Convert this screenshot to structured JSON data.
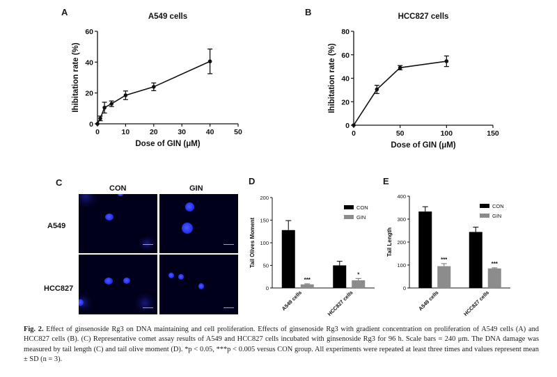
{
  "panels": {
    "A": {
      "label": "A",
      "chart_data": {
        "type": "line",
        "title": "A549 cells",
        "xlabel": "Dose of GIN (μM)",
        "ylabel": "Ihibitation rate (%)",
        "xlim": [
          0,
          50
        ],
        "ylim": [
          0,
          60
        ],
        "xticks": [
          0,
          10,
          20,
          30,
          40,
          50
        ],
        "yticks": [
          0,
          20,
          40,
          60
        ],
        "series": [
          {
            "name": "A549",
            "x": [
              0,
              1,
              2.5,
              5,
              10,
              20,
              40
            ],
            "y": [
              0,
              3.5,
              10.5,
              13,
              18.5,
              24,
              40.5
            ],
            "err": [
              0,
              1.5,
              3.5,
              1.8,
              2.8,
              2.5,
              8
            ]
          }
        ]
      }
    },
    "B": {
      "label": "B",
      "chart_data": {
        "type": "line",
        "title": "HCC827 cells",
        "xlabel": "Dose of GIN (μM)",
        "ylabel": "Ihibitation rate (%)",
        "xlim": [
          0,
          150
        ],
        "ylim": [
          0,
          80
        ],
        "xticks": [
          0,
          50,
          100,
          150
        ],
        "yticks": [
          0,
          20,
          40,
          60,
          80
        ],
        "series": [
          {
            "name": "HCC827",
            "x": [
              0,
              25,
              50,
              100
            ],
            "y": [
              0,
              30.5,
              49,
              54.5
            ],
            "err": [
              0,
              3.5,
              1.8,
              4.5
            ]
          }
        ]
      }
    },
    "C": {
      "label": "C",
      "col_labels": [
        "CON",
        "GIN"
      ],
      "row_labels": [
        "A549",
        "HCC827"
      ]
    },
    "D": {
      "label": "D",
      "chart_data": {
        "type": "bar",
        "title": "",
        "ylabel": "Tail Olives Moment",
        "xlabel": "",
        "ylim": [
          0,
          200
        ],
        "yticks": [
          0,
          50,
          100,
          150,
          200
        ],
        "categories": [
          "A549 cells",
          "HCC827 cells"
        ],
        "series": [
          {
            "name": "CON",
            "color": "#000000",
            "values": [
              128,
              50
            ],
            "err": [
              21,
              9
            ]
          },
          {
            "name": "GIN",
            "color": "#8c8c8c",
            "values": [
              8,
              17
            ],
            "err": [
              1.2,
              4
            ]
          }
        ],
        "annotations": [
          "***",
          "*"
        ],
        "legend": "top-right"
      }
    },
    "E": {
      "label": "E",
      "chart_data": {
        "type": "bar",
        "title": "",
        "ylabel": "Tail Length",
        "xlabel": "",
        "ylim": [
          0,
          400
        ],
        "yticks": [
          0,
          100,
          200,
          300,
          400
        ],
        "categories": [
          "A549 cells",
          "HCC827 cells"
        ],
        "series": [
          {
            "name": "CON",
            "color": "#000000",
            "values": [
              333,
              244
            ],
            "err": [
              21,
              21
            ]
          },
          {
            "name": "GIN",
            "color": "#8c8c8c",
            "values": [
              95,
              85
            ],
            "err": [
              11,
              3
            ]
          }
        ],
        "annotations": [
          "***",
          "***"
        ],
        "legend": "top-right"
      }
    }
  },
  "caption": {
    "fig": "Fig. 2.",
    "text": "Effect of ginsenoside Rg3 on DNA maintaining and cell proliferation. Effects of ginsenoside Rg3 with gradient concentration on proliferation of A549 cells (A) and HCC827 cells (B). (C) Representative comet assay results of A549 and HCC827 cells incubated with ginsenoside Rg3 for 96 h. Scale bars = 240 μm. The DNA damage was measured by tail length (C) and tail olive moment (D). *p < 0.05, ***p < 0.005 versus CON group. All experiments were repeated at least three times and values represent mean ± SD (n = 3)."
  }
}
